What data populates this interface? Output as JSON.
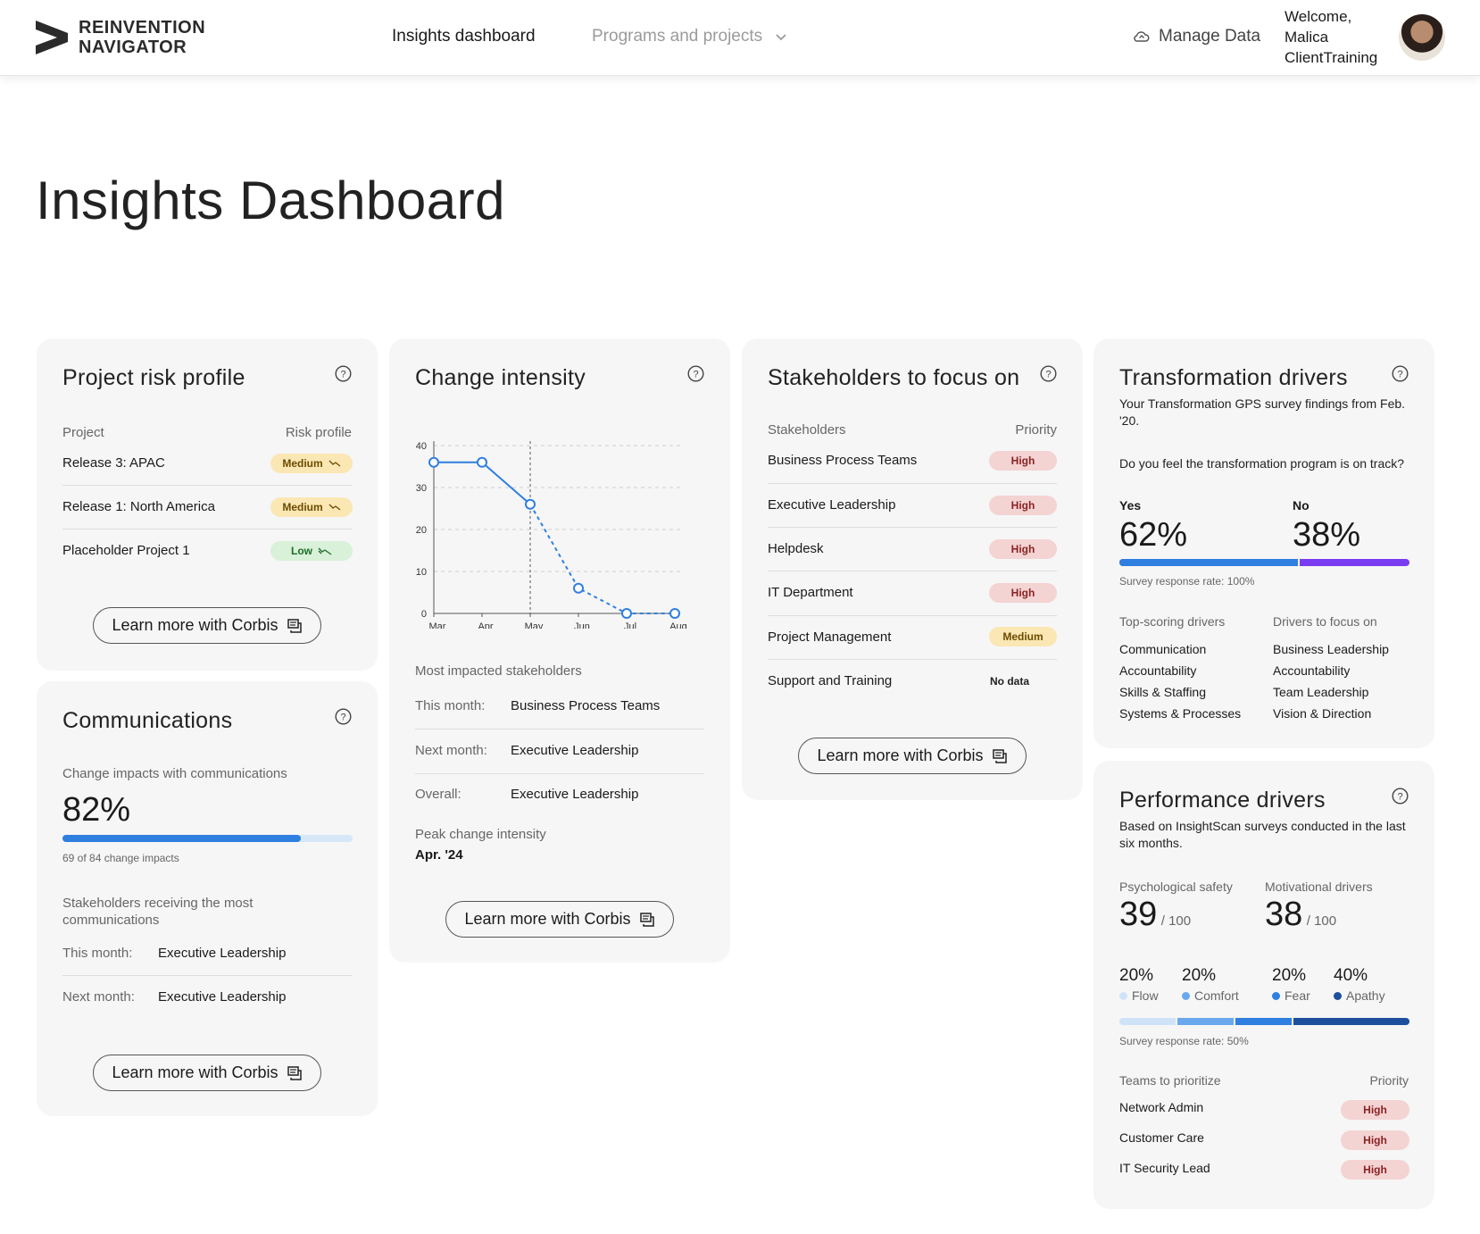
{
  "header": {
    "logo_line1": "REINVENTION",
    "logo_line2": "NAVIGATOR",
    "nav_active": "Insights dashboard",
    "nav_programs": "Programs and projects",
    "manage_data": "Manage Data",
    "welcome_line1": "Welcome,",
    "welcome_line2": "Malica",
    "welcome_line3": "ClientTraining"
  },
  "page_title": "Insights Dashboard",
  "risk": {
    "title": "Project risk profile",
    "col_project": "Project",
    "col_risk": "Risk profile",
    "rows": [
      {
        "name": "Release 3: APAC",
        "level": "Medium"
      },
      {
        "name": "Release 1: North America",
        "level": "Medium"
      },
      {
        "name": "Placeholder Project 1",
        "level": "Low"
      }
    ],
    "button": "Learn more with Corbis"
  },
  "comms": {
    "title": "Communications",
    "impacts_label": "Change impacts with communications",
    "percent": "82%",
    "progress": 0.82,
    "count_text": "69 of 84 change impacts",
    "most_label": "Stakeholders receiving the most communications",
    "this_month_label": "This month:",
    "this_month_value": "Executive Leadership",
    "next_month_label": "Next month:",
    "next_month_value": "Executive Leadership",
    "button": "Learn more with Corbis"
  },
  "change": {
    "title": "Change intensity",
    "most_label": "Most impacted stakeholders",
    "this_month_label": "This month:",
    "this_month_value": "Business Process Teams",
    "next_month_label": "Next month:",
    "next_month_value": "Executive Leadership",
    "overall_label": "Overall:",
    "overall_value": "Executive Leadership",
    "peak_label": "Peak change intensity",
    "peak_value": "Apr. '24",
    "button": "Learn more with Corbis"
  },
  "chart_data": {
    "type": "line",
    "x": [
      "Mar",
      "Apr",
      "May",
      "Jun",
      "Jul",
      "Aug"
    ],
    "yticks": [
      "0",
      "10",
      "20",
      "30",
      "40"
    ],
    "ylim": [
      0,
      40
    ],
    "series": [
      {
        "values": [
          36,
          36,
          26,
          6,
          0,
          0
        ]
      }
    ],
    "actual_through_index": 2,
    "current_marker_index": 2,
    "grid": true,
    "color": "#2f7fe0"
  },
  "stake": {
    "title": "Stakeholders to focus on",
    "col_stake": "Stakeholders",
    "col_priority": "Priority",
    "rows": [
      {
        "name": "Business Process Teams",
        "level": "High"
      },
      {
        "name": "Executive Leadership",
        "level": "High"
      },
      {
        "name": "Helpdesk",
        "level": "High"
      },
      {
        "name": "IT Department",
        "level": "High"
      },
      {
        "name": "Project Management",
        "level": "Medium"
      },
      {
        "name": "Support and Training",
        "level": "No data"
      }
    ],
    "button": "Learn more with Corbis"
  },
  "transform": {
    "title": "Transformation drivers",
    "subtitle": "Your Transformation GPS survey findings from Feb. '20.",
    "question": "Do you feel the transformation program is on track?",
    "yes_label": "Yes",
    "yes_value": "62%",
    "yes_fraction": 0.62,
    "no_label": "No",
    "no_value": "38%",
    "response": "Survey response rate: 100%",
    "top_label": "Top-scoring drivers",
    "focus_label": "Drivers to focus on",
    "top": [
      "Communication",
      "Accountability",
      "Skills & Staffing",
      "Systems & Processes"
    ],
    "focus": [
      "Business Leadership",
      "Accountability",
      "Team Leadership",
      "Vision & Direction"
    ]
  },
  "perf": {
    "title": "Performance drivers",
    "subtitle": "Based on InsightScan surveys conducted in the last six months.",
    "psych_label": "Psychological safety",
    "psych_value": "39",
    "psych_of": "/ 100",
    "motiv_label": "Motivational drivers",
    "motiv_value": "38",
    "motiv_of": "/ 100",
    "segments": [
      {
        "pct": "20%",
        "name": "Flow",
        "fraction": 0.2,
        "color": "#cfe3f8"
      },
      {
        "pct": "20%",
        "name": "Comfort",
        "fraction": 0.2,
        "color": "#6aa8ee"
      },
      {
        "pct": "20%",
        "name": "Fear",
        "fraction": 0.2,
        "color": "#2f7fe0"
      },
      {
        "pct": "40%",
        "name": "Apathy",
        "fraction": 0.4,
        "color": "#1e4f9c"
      }
    ],
    "response": "Survey response rate: 50%",
    "teams_label": "Teams to prioritize",
    "priority_label": "Priority",
    "teams": [
      {
        "name": "Network Admin",
        "level": "High"
      },
      {
        "name": "Customer Care",
        "level": "High"
      },
      {
        "name": "IT Security Lead",
        "level": "High"
      }
    ]
  }
}
